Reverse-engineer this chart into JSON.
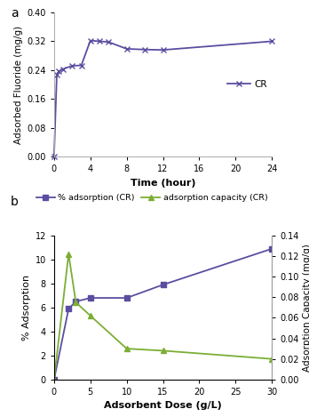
{
  "plot_a": {
    "time": [
      0,
      0.3,
      0.5,
      1.0,
      2.0,
      3.0,
      4.0,
      5.0,
      6.0,
      8.0,
      10.0,
      12.0,
      24.0
    ],
    "adsorbed_f": [
      0.0,
      0.228,
      0.236,
      0.243,
      0.252,
      0.253,
      0.322,
      0.32,
      0.318,
      0.299,
      0.297,
      0.296,
      0.32
    ],
    "color": "#5B4EA0",
    "marker": "x",
    "markersize": 5,
    "linewidth": 1.3,
    "label": "CR",
    "xlabel": "Time (hour)",
    "ylabel": "Adsorbed Fluoride (mg/g)",
    "xlim": [
      0,
      24
    ],
    "ylim": [
      0,
      0.4
    ],
    "yticks": [
      0,
      0.08,
      0.16,
      0.24,
      0.32,
      0.4
    ],
    "xticks": [
      0,
      4,
      8,
      12,
      16,
      20,
      24
    ]
  },
  "plot_b": {
    "dose": [
      0,
      2,
      3,
      5,
      10,
      15,
      30
    ],
    "pct_adsorption": [
      0.0,
      5.9,
      6.5,
      6.8,
      6.8,
      7.9,
      10.9
    ],
    "ads_capacity": [
      0.0,
      0.122,
      0.075,
      0.062,
      0.03,
      0.028,
      0.02
    ],
    "color_pct": "#5B4EA0",
    "color_cap": "#7BAE34",
    "marker_pct": "s",
    "marker_cap": "^",
    "markersize": 5,
    "linewidth": 1.3,
    "label_pct": "% adsorption (CR)",
    "label_cap": "adsorption capacity (CR)",
    "xlabel": "Adsorbent Dose (g/L)",
    "ylabel_left": "% Adsorption",
    "ylabel_right": "Adsorption Capacity (mg/g)",
    "xlim": [
      0,
      30
    ],
    "ylim_left": [
      0,
      12
    ],
    "ylim_right": [
      0,
      0.14
    ],
    "yticks_left": [
      0,
      2,
      4,
      6,
      8,
      10,
      12
    ],
    "yticks_right": [
      0,
      0.02,
      0.04,
      0.06,
      0.08,
      0.1,
      0.12,
      0.14
    ],
    "xticks": [
      0,
      5,
      10,
      15,
      20,
      25,
      30
    ]
  },
  "bg_color": "#ffffff",
  "label_a": "a",
  "label_b": "b"
}
